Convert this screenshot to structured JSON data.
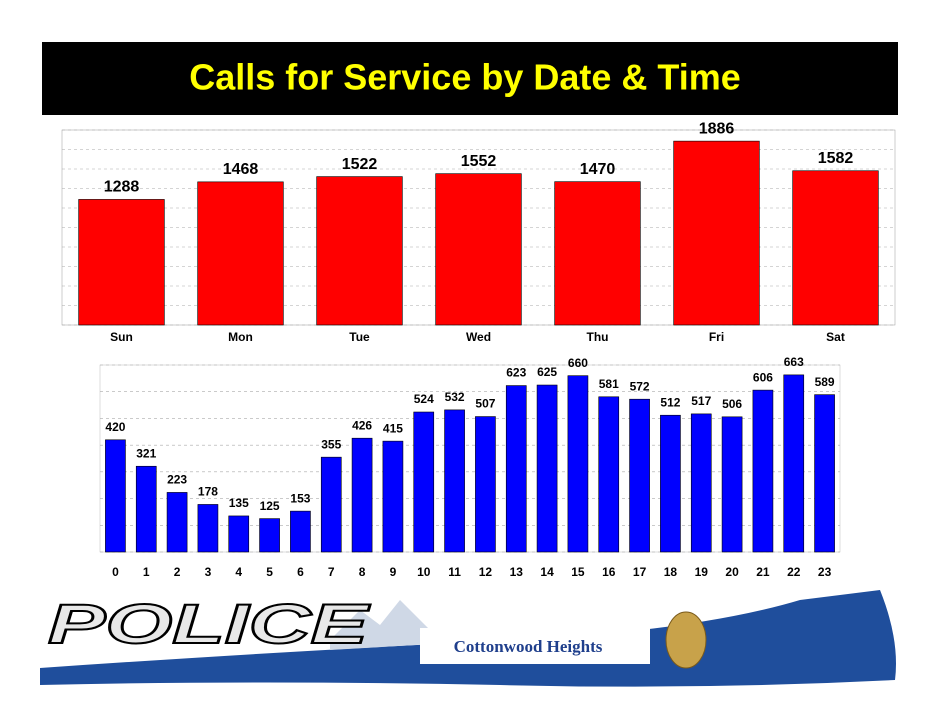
{
  "title": "Calls for Service by Date & Time",
  "chart_data": [
    {
      "type": "bar",
      "categories": [
        "Sun",
        "Mon",
        "Tue",
        "Wed",
        "Thu",
        "Fri",
        "Sat"
      ],
      "values": [
        1288,
        1468,
        1522,
        1552,
        1470,
        1886,
        1582
      ],
      "color": "#ff0000",
      "ylim": [
        0,
        2000
      ],
      "yticks": [
        0,
        200,
        400,
        600,
        800,
        1000,
        1200,
        1400,
        1600,
        1800,
        2000
      ],
      "grid": true
    },
    {
      "type": "bar",
      "categories": [
        "0",
        "1",
        "2",
        "3",
        "4",
        "5",
        "6",
        "7",
        "8",
        "9",
        "10",
        "11",
        "12",
        "13",
        "14",
        "15",
        "16",
        "17",
        "18",
        "19",
        "20",
        "21",
        "22",
        "23"
      ],
      "values": [
        420,
        321,
        223,
        178,
        135,
        125,
        153,
        355,
        426,
        415,
        524,
        532,
        507,
        623,
        625,
        660,
        581,
        572,
        512,
        517,
        506,
        606,
        663,
        589
      ],
      "color": "#0000ff",
      "ylim": [
        0,
        700
      ],
      "yticks": [
        0,
        100,
        200,
        300,
        400,
        500,
        600,
        700
      ],
      "grid": true
    }
  ],
  "footer": {
    "logo": "POLICE",
    "city": "Cottonwood Heights"
  }
}
